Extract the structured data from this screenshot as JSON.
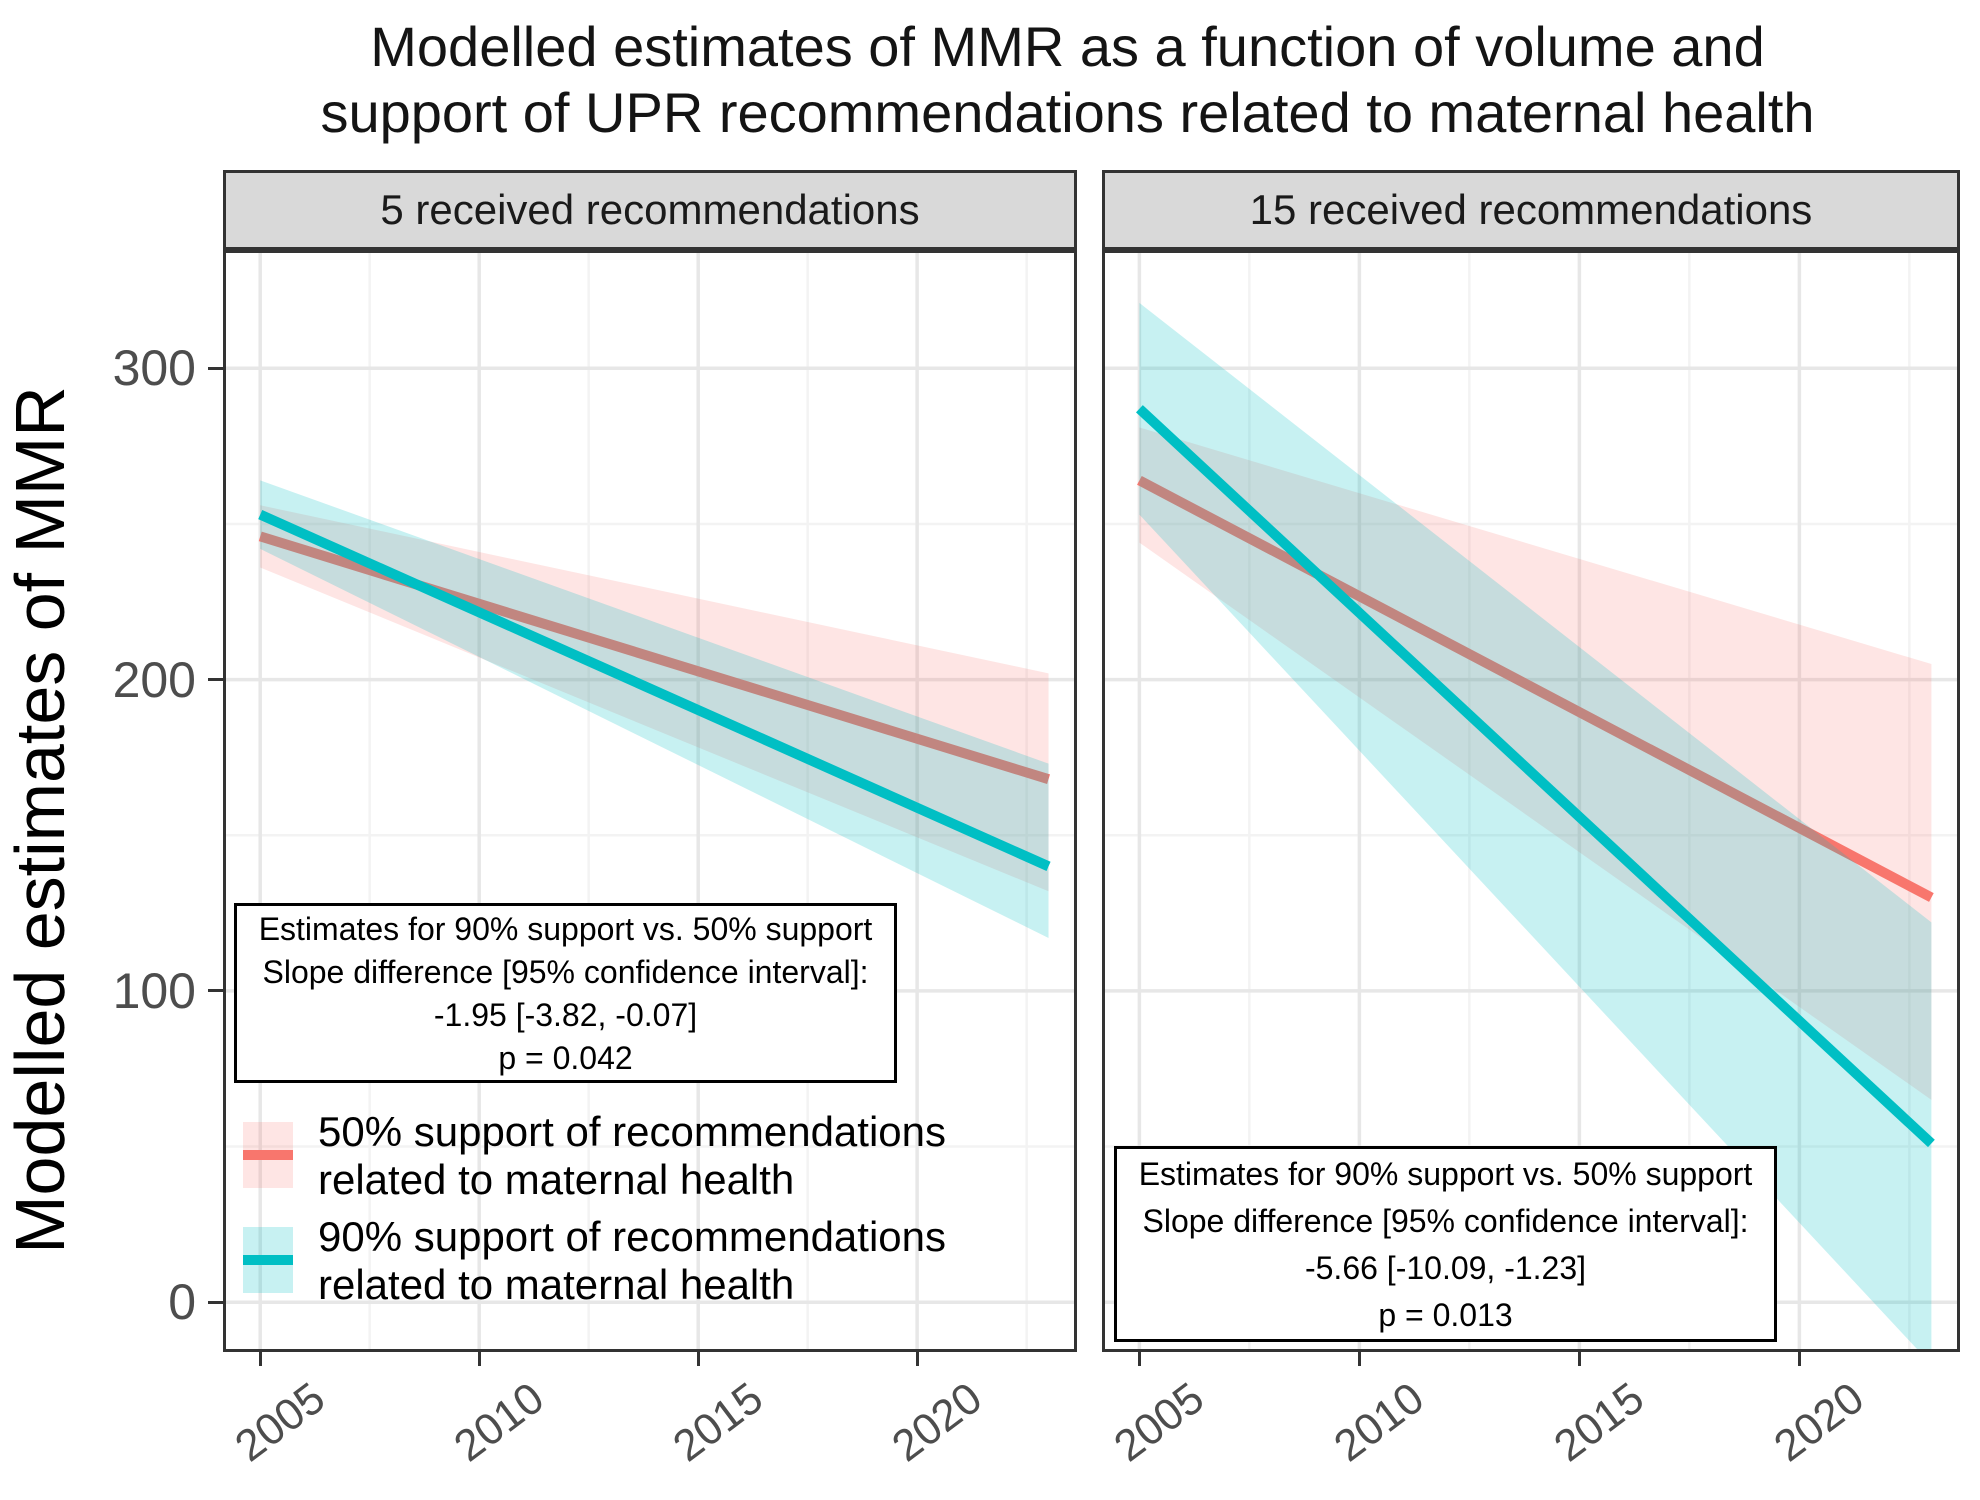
{
  "title": {
    "line1": "Modelled estimates of MMR as a function of volume and",
    "line2": "support of UPR recommendations related to maternal health"
  },
  "y_axis": {
    "label": "Modelled estimates of MMR",
    "ticks": [
      "300",
      "200",
      "100",
      "0"
    ]
  },
  "x_axis": {
    "ticks": [
      "2005",
      "2010",
      "2015",
      "2020"
    ]
  },
  "panels": [
    {
      "strip": "5 received recommendations",
      "annotation": {
        "line1": "Estimates for 90% support vs. 50% support",
        "line2": "Slope difference [95% confidence interval]:",
        "line3": "-1.95 [-3.82, -0.07]",
        "line4": "p = 0.042"
      }
    },
    {
      "strip": "15 received recommendations",
      "annotation": {
        "line1": "Estimates for 90% support vs. 50% support",
        "line2": "Slope difference [95% confidence interval]:",
        "line3": "-5.66 [-10.09, -1.23]",
        "line4": "p = 0.013"
      }
    }
  ],
  "legend": {
    "items": [
      {
        "line1": "50% support of recommendations",
        "line2": "related to maternal health",
        "color": "#F8766D"
      },
      {
        "line1": "90% support of recommendations",
        "line2": "related to maternal health",
        "color": "#00BFC4"
      }
    ]
  },
  "colors": {
    "line_50pct": "#F8766D",
    "line_90pct": "#00BFC4",
    "band_opacity_50pct": 0.19,
    "band_opacity_90pct": 0.22,
    "strip_bg": "#D9D9D9",
    "panel_border": "#333333",
    "grid_major": "#E7E7E7",
    "grid_minor": "#F3F3F3",
    "tick_label": "#4D4D4D"
  },
  "chart_data": [
    {
      "type": "line",
      "panel": "5 received recommendations",
      "title": "Modelled estimates of MMR as a function of volume and support of UPR recommendations related to maternal health",
      "xlabel": "",
      "ylabel": "Modelled estimates of MMR",
      "xlim": [
        2004.15,
        2023.65
      ],
      "ylim": [
        -16,
        338
      ],
      "x_major_ticks": [
        2005,
        2010,
        2015,
        2020
      ],
      "x_minor_ticks": [
        2007.5,
        2012.5,
        2017.5,
        2022.5
      ],
      "y_major_ticks": [
        0,
        100,
        200,
        300
      ],
      "y_minor_ticks": [
        50,
        150,
        250
      ],
      "grid": true,
      "legend_position": "bottom-left inside plot",
      "series": [
        {
          "name": "50% support of recommendations related to maternal health",
          "color": "#F8766D",
          "x": [
            2005,
            2023
          ],
          "y": [
            246,
            168
          ],
          "ci_lower": [
            236,
            132
          ],
          "ci_upper": [
            256,
            202
          ]
        },
        {
          "name": "90% support of recommendations related to maternal health",
          "color": "#00BFC4",
          "x": [
            2005,
            2023
          ],
          "y": [
            253,
            140
          ],
          "ci_lower": [
            242,
            117
          ],
          "ci_upper": [
            264,
            173
          ]
        }
      ],
      "slope_difference": "-1.95 [-3.82, -0.07]",
      "p_value": "p = 0.042"
    },
    {
      "type": "line",
      "panel": "15 received recommendations",
      "xlabel": "",
      "ylabel": "Modelled estimates of MMR",
      "xlim": [
        2004.15,
        2023.65
      ],
      "ylim": [
        -16,
        338
      ],
      "x_major_ticks": [
        2005,
        2010,
        2015,
        2020
      ],
      "x_minor_ticks": [
        2007.5,
        2012.5,
        2017.5,
        2022.5
      ],
      "y_major_ticks": [
        0,
        100,
        200,
        300
      ],
      "y_minor_ticks": [
        50,
        150,
        250
      ],
      "grid": true,
      "series": [
        {
          "name": "50% support of recommendations related to maternal health",
          "color": "#F8766D",
          "x": [
            2005,
            2023
          ],
          "y": [
            264,
            130
          ],
          "ci_lower": [
            244,
            65
          ],
          "ci_upper": [
            281,
            205
          ]
        },
        {
          "name": "90% support of recommendations related to maternal health",
          "color": "#00BFC4",
          "x": [
            2005,
            2023
          ],
          "y": [
            287,
            51
          ],
          "ci_lower": [
            253,
            -20
          ],
          "ci_upper": [
            321,
            122
          ]
        }
      ],
      "slope_difference": "-5.66 [-10.09, -1.23]",
      "p_value": "p = 0.013"
    }
  ]
}
